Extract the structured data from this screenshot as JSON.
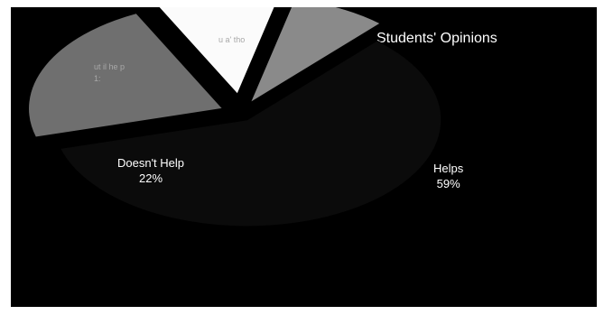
{
  "chart_data": {
    "type": "pie",
    "title": "Students' Opinions",
    "slices": [
      {
        "label": "Helps",
        "percent_label": "59%",
        "value": 59,
        "color": "#0b0b0b"
      },
      {
        "label": "Doesn't Help",
        "percent_label": "22%",
        "value": 22,
        "color": "#6f6f6f"
      },
      {
        "label": "",
        "percent_label": "",
        "value": 11,
        "color": "#fbfbfb"
      },
      {
        "label": "",
        "percent_label": "",
        "value": 8,
        "color": "#8a8a8a"
      }
    ],
    "faded_labels": [
      {
        "text": "",
        "lines": [
          "u a' tho"
        ]
      },
      {
        "text": "",
        "lines": [
          "ut il he p",
          "1:"
        ]
      }
    ]
  },
  "colors": {
    "background": "#000000",
    "text": "#ffffff"
  }
}
